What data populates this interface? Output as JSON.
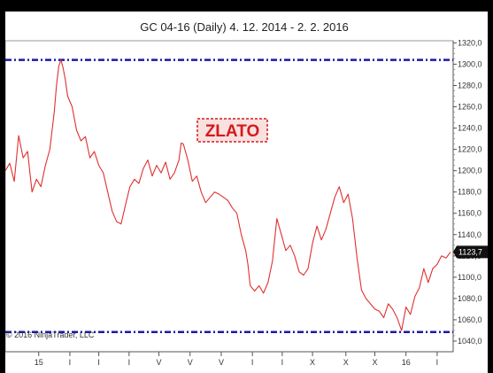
{
  "chart_data": {
    "type": "line",
    "title": "GC 04-16 (Daily)  4. 12. 2014 - 2. 2. 2016",
    "annotation": "ZLATO",
    "copyright": "© 2016 NinjaTrader, LLC",
    "last_value_label": "1123,7",
    "last_value": 1123.7,
    "ylim": [
      1030,
      1322
    ],
    "yticks": [
      1040,
      1060,
      1080,
      1100,
      1120,
      1140,
      1160,
      1180,
      1200,
      1220,
      1240,
      1260,
      1280,
      1300,
      1320
    ],
    "ytick_labels": [
      "1040,0",
      "1060,0",
      "1080,0",
      "1100,0",
      "1120,0",
      "1140,0",
      "1160,0",
      "1180,0",
      "1200,0",
      "1220,0",
      "1240,0",
      "1260,0",
      "1280,0",
      "1300,0",
      "1320,0"
    ],
    "xticks": [
      {
        "label": "15",
        "pos": 0.075
      },
      {
        "label": "I",
        "pos": 0.145
      },
      {
        "label": "I",
        "pos": 0.21
      },
      {
        "label": "I",
        "pos": 0.278
      },
      {
        "label": "V",
        "pos": 0.345
      },
      {
        "label": "V",
        "pos": 0.415
      },
      {
        "label": "V",
        "pos": 0.485
      },
      {
        "label": "I",
        "pos": 0.555
      },
      {
        "label": "I",
        "pos": 0.622
      },
      {
        "label": "X",
        "pos": 0.69
      },
      {
        "label": "X",
        "pos": 0.765
      },
      {
        "label": "X",
        "pos": 0.83
      },
      {
        "label": "16",
        "pos": 0.9
      },
      {
        "label": "I",
        "pos": 0.97
      }
    ],
    "hlines": [
      {
        "value": 1304,
        "color": "#1a1aa8",
        "style": "dash-dot"
      },
      {
        "value": 1048.5,
        "color": "#1a1aa8",
        "style": "dash-dot"
      }
    ],
    "series": [
      {
        "color": "#e03030",
        "points": [
          [
            0.0,
            1200
          ],
          [
            0.01,
            1207
          ],
          [
            0.02,
            1190
          ],
          [
            0.03,
            1233
          ],
          [
            0.04,
            1212
          ],
          [
            0.05,
            1218
          ],
          [
            0.06,
            1180
          ],
          [
            0.07,
            1192
          ],
          [
            0.08,
            1185
          ],
          [
            0.09,
            1205
          ],
          [
            0.1,
            1220
          ],
          [
            0.11,
            1255
          ],
          [
            0.115,
            1280
          ],
          [
            0.12,
            1298
          ],
          [
            0.125,
            1304
          ],
          [
            0.13,
            1296
          ],
          [
            0.135,
            1285
          ],
          [
            0.14,
            1270
          ],
          [
            0.15,
            1260
          ],
          [
            0.16,
            1238
          ],
          [
            0.17,
            1228
          ],
          [
            0.18,
            1232
          ],
          [
            0.19,
            1212
          ],
          [
            0.2,
            1218
          ],
          [
            0.21,
            1205
          ],
          [
            0.22,
            1198
          ],
          [
            0.23,
            1180
          ],
          [
            0.24,
            1162
          ],
          [
            0.25,
            1152
          ],
          [
            0.26,
            1150
          ],
          [
            0.27,
            1168
          ],
          [
            0.28,
            1185
          ],
          [
            0.29,
            1192
          ],
          [
            0.3,
            1188
          ],
          [
            0.31,
            1202
          ],
          [
            0.32,
            1210
          ],
          [
            0.33,
            1195
          ],
          [
            0.34,
            1205
          ],
          [
            0.35,
            1198
          ],
          [
            0.36,
            1208
          ],
          [
            0.37,
            1192
          ],
          [
            0.38,
            1198
          ],
          [
            0.39,
            1210
          ],
          [
            0.395,
            1226
          ],
          [
            0.4,
            1225
          ],
          [
            0.41,
            1210
          ],
          [
            0.42,
            1190
          ],
          [
            0.43,
            1195
          ],
          [
            0.44,
            1180
          ],
          [
            0.45,
            1170
          ],
          [
            0.46,
            1175
          ],
          [
            0.47,
            1180
          ],
          [
            0.48,
            1178
          ],
          [
            0.49,
            1175
          ],
          [
            0.5,
            1172
          ],
          [
            0.51,
            1165
          ],
          [
            0.52,
            1160
          ],
          [
            0.53,
            1140
          ],
          [
            0.54,
            1125
          ],
          [
            0.545,
            1112
          ],
          [
            0.55,
            1092
          ],
          [
            0.56,
            1087
          ],
          [
            0.57,
            1092
          ],
          [
            0.58,
            1085
          ],
          [
            0.59,
            1095
          ],
          [
            0.6,
            1115
          ],
          [
            0.61,
            1155
          ],
          [
            0.62,
            1140
          ],
          [
            0.63,
            1125
          ],
          [
            0.64,
            1130
          ],
          [
            0.65,
            1120
          ],
          [
            0.66,
            1105
          ],
          [
            0.67,
            1102
          ],
          [
            0.68,
            1108
          ],
          [
            0.69,
            1132
          ],
          [
            0.7,
            1148
          ],
          [
            0.71,
            1135
          ],
          [
            0.72,
            1145
          ],
          [
            0.73,
            1160
          ],
          [
            0.74,
            1175
          ],
          [
            0.75,
            1185
          ],
          [
            0.76,
            1170
          ],
          [
            0.77,
            1178
          ],
          [
            0.78,
            1155
          ],
          [
            0.79,
            1118
          ],
          [
            0.8,
            1088
          ],
          [
            0.81,
            1080
          ],
          [
            0.82,
            1075
          ],
          [
            0.83,
            1070
          ],
          [
            0.84,
            1068
          ],
          [
            0.85,
            1062
          ],
          [
            0.86,
            1075
          ],
          [
            0.87,
            1070
          ],
          [
            0.88,
            1062
          ],
          [
            0.89,
            1050
          ],
          [
            0.9,
            1072
          ],
          [
            0.91,
            1065
          ],
          [
            0.92,
            1082
          ],
          [
            0.93,
            1090
          ],
          [
            0.94,
            1108
          ],
          [
            0.95,
            1095
          ],
          [
            0.96,
            1108
          ],
          [
            0.97,
            1112
          ],
          [
            0.98,
            1120
          ],
          [
            0.99,
            1118
          ],
          [
            1.0,
            1123.7
          ]
        ]
      }
    ]
  }
}
